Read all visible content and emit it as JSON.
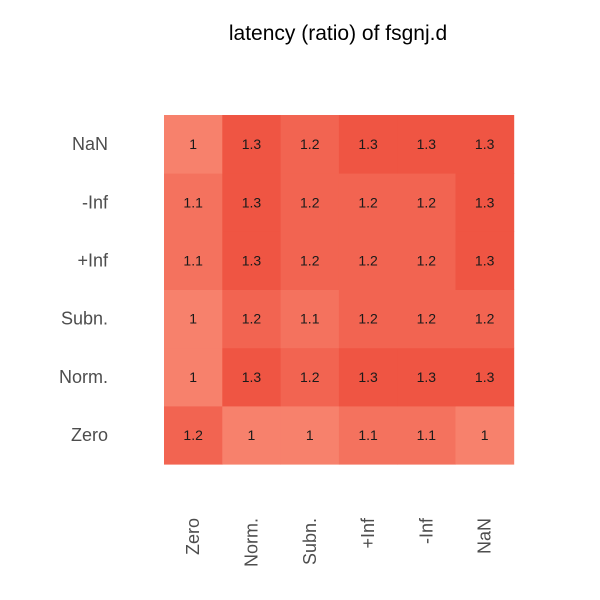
{
  "chart_data": {
    "type": "heatmap",
    "title": "latency (ratio) of fsgnj.d",
    "xlabel": "",
    "ylabel": "",
    "x_categories": [
      "Zero",
      "Norm.",
      "Subn.",
      "+Inf",
      "-Inf",
      "NaN"
    ],
    "y_categories": [
      "Zero",
      "Norm.",
      "Subn.",
      "+Inf",
      "-Inf",
      "NaN"
    ],
    "values": [
      [
        "1.2",
        "1",
        "1",
        "1.1",
        "1.1",
        "1"
      ],
      [
        "1",
        "1.3",
        "1.2",
        "1.3",
        "1.3",
        "1.3"
      ],
      [
        "1",
        "1.2",
        "1.1",
        "1.2",
        "1.2",
        "1.2"
      ],
      [
        "1.1",
        "1.3",
        "1.2",
        "1.2",
        "1.2",
        "1.3"
      ],
      [
        "1.1",
        "1.3",
        "1.2",
        "1.2",
        "1.2",
        "1.3"
      ],
      [
        "1",
        "1.3",
        "1.2",
        "1.3",
        "1.3",
        "1.3"
      ]
    ],
    "color_low": "#f7816c",
    "color_high": "#ef5543",
    "legend": "none"
  }
}
